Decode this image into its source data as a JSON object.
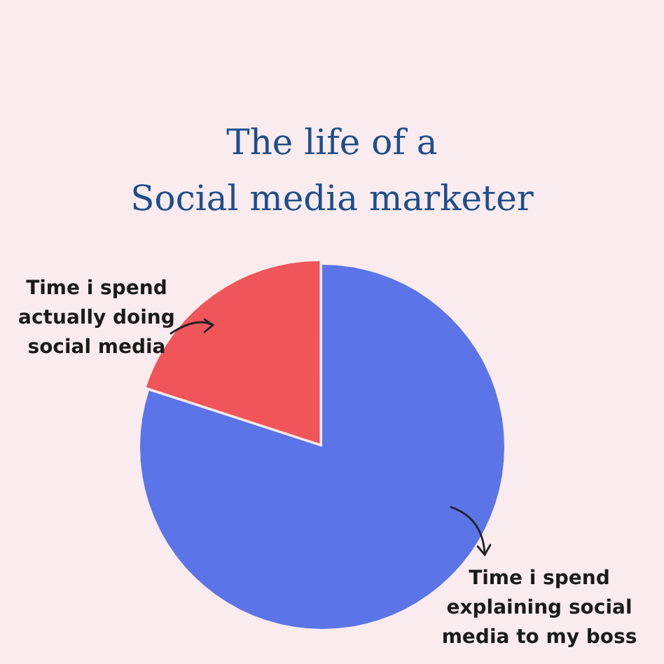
{
  "chart_data": {
    "type": "pie",
    "title": "The life of a\nSocial media marketer",
    "categories": [
      "Time i spend explaining social media to my boss",
      "Time i spend actually doing social media"
    ],
    "values": [
      80,
      20
    ],
    "colors": [
      "#5b74e8",
      "#f0555a"
    ]
  }
}
